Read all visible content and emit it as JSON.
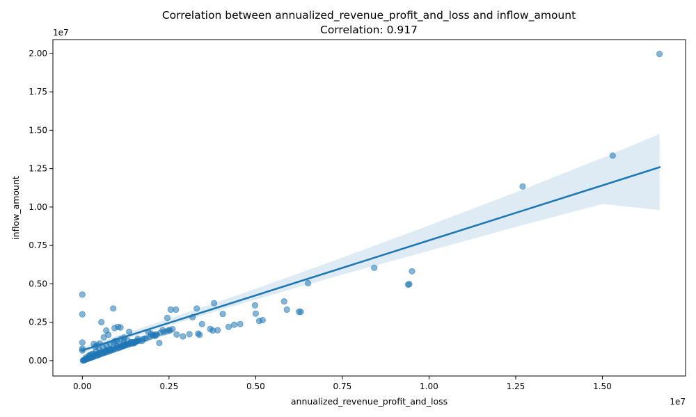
{
  "chart_data": {
    "type": "scatter",
    "title": "Correlation between annualized_revenue_profit_and_loss and inflow_amount",
    "subtitle": "Correlation: 0.917",
    "xlabel": "annualized_revenue_profit_and_loss",
    "ylabel": "inflow_amount",
    "x_offset_text": "1e7",
    "y_offset_text": "1e7",
    "xlim": [
      -0.085,
      1.74
    ],
    "ylim": [
      -0.1,
      2.09
    ],
    "x_ticks": [
      0.0,
      0.25,
      0.5,
      0.75,
      1.0,
      1.25,
      1.5
    ],
    "x_tick_labels": [
      "0.00",
      "0.25",
      "0.50",
      "0.75",
      "1.00",
      "1.25",
      "1.50"
    ],
    "y_ticks": [
      0.0,
      0.25,
      0.5,
      0.75,
      1.0,
      1.25,
      1.5,
      1.75,
      2.0
    ],
    "y_tick_labels": [
      "0.00",
      "0.25",
      "0.50",
      "0.75",
      "1.00",
      "1.25",
      "1.50",
      "1.75",
      "2.00"
    ],
    "grid": false,
    "legend": "none",
    "colors": {
      "points": "#1f77b4",
      "line": "#1f77b4",
      "band": "#1f77b4"
    },
    "regression": {
      "x": [
        0.0,
        1.665
      ],
      "y": [
        0.067,
        1.259
      ]
    },
    "confidence_band": {
      "x": [
        0.0,
        0.25,
        0.5,
        0.75,
        1.0,
        1.25,
        1.5,
        1.665
      ],
      "upper": [
        0.085,
        0.273,
        0.468,
        0.67,
        0.88,
        1.095,
        1.32,
        1.475
      ],
      "lower": [
        0.049,
        0.229,
        0.398,
        0.56,
        0.715,
        0.87,
        1.02,
        0.98
      ]
    },
    "points": {
      "x": [
        1.665,
        1.53,
        1.27,
        0.951,
        0.842,
        0.943,
        0.94,
        0.651,
        0.59,
        0.582,
        0.63,
        0.625,
        0.498,
        0.5,
        0.51,
        0.52,
        0.455,
        0.438,
        0.422,
        0.405,
        0.38,
        0.376,
        0.369,
        0.39,
        0.33,
        0.318,
        0.345,
        0.338,
        0.334,
        0.309,
        0.29,
        0.27,
        0.255,
        0.245,
        0.272,
        0.252,
        0.232,
        0.222,
        0.212,
        0.202,
        0.198,
        0.21,
        0.19,
        0.18,
        0.172,
        0.16,
        0.147,
        0.135,
        0.13,
        0.12,
        0.11,
        0.103,
        0.093,
        0.089,
        0.095,
        0.075,
        0.069,
        0.062,
        0.055,
        0.05,
        0.042,
        0.037,
        0.033,
        0.0,
        0.0,
        0.0,
        0.0,
        0.0,
        0.025,
        0.05,
        0.075,
        0.1,
        0.125,
        0.15,
        0.16,
        0.14,
        0.12,
        0.1,
        0.08,
        0.06,
        0.04,
        0.02,
        0.01,
        0.015,
        0.02,
        0.03,
        0.035,
        0.045,
        0.055,
        0.065,
        0.07,
        0.085,
        0.09,
        0.11,
        0.115,
        0.125,
        0.14,
        0.145,
        0.155,
        0.165,
        0.175,
        0.185,
        0.195,
        0.205,
        0.215,
        0.225,
        0.235,
        0.243,
        0.25,
        0.26,
        0.005,
        0.008,
        0.012,
        0.018,
        0.022,
        0.028,
        0.032,
        0.038,
        0.044,
        0.048,
        0.052,
        0.058,
        0.062,
        0.068,
        0.072,
        0.078,
        0.082,
        0.088,
        0.092,
        0.098,
        0.105,
        0.108,
        0.113,
        0.118,
        0.123,
        0.128,
        0.133,
        0.138,
        0.142,
        0.148,
        0.152,
        0.158,
        0.01,
        0.02,
        0.03,
        0.04,
        0.05,
        0.06,
        0.07,
        0.08,
        0.09,
        0.1,
        0.11,
        0.12,
        0.002,
        0.003,
        0.006,
        0.009,
        0.011,
        0.014,
        0.016,
        0.019,
        0.021,
        0.024,
        0.026,
        0.029
      ],
      "y": [
        1.997,
        1.335,
        1.134,
        0.582,
        0.605,
        0.498,
        0.495,
        0.504,
        0.332,
        0.386,
        0.318,
        0.318,
        0.36,
        0.306,
        0.258,
        0.264,
        0.238,
        0.234,
        0.22,
        0.304,
        0.374,
        0.196,
        0.206,
        0.198,
        0.34,
        0.283,
        0.238,
        0.168,
        0.176,
        0.172,
        0.158,
        0.332,
        0.332,
        0.278,
        0.17,
        0.195,
        0.198,
        0.115,
        0.17,
        0.164,
        0.176,
        0.16,
        0.186,
        0.144,
        0.128,
        0.142,
        0.112,
        0.188,
        0.132,
        0.125,
        0.216,
        0.22,
        0.212,
        0.34,
        0.128,
        0.168,
        0.196,
        0.152,
        0.25,
        0.112,
        0.1,
        0.09,
        0.108,
        0.43,
        0.302,
        0.118,
        0.078,
        0.066,
        0.04,
        0.05,
        0.07,
        0.09,
        0.105,
        0.115,
        0.13,
        0.12,
        0.105,
        0.095,
        0.075,
        0.055,
        0.04,
        0.02,
        0.01,
        0.015,
        0.03,
        0.025,
        0.04,
        0.045,
        0.055,
        0.06,
        0.07,
        0.07,
        0.085,
        0.1,
        0.095,
        0.105,
        0.115,
        0.12,
        0.125,
        0.13,
        0.14,
        0.145,
        0.155,
        0.165,
        0.17,
        0.18,
        0.185,
        0.19,
        0.2,
        0.205,
        0.003,
        0.006,
        0.01,
        0.014,
        0.018,
        0.022,
        0.026,
        0.03,
        0.034,
        0.038,
        0.042,
        0.046,
        0.05,
        0.054,
        0.058,
        0.062,
        0.066,
        0.07,
        0.074,
        0.078,
        0.082,
        0.086,
        0.09,
        0.094,
        0.098,
        0.102,
        0.106,
        0.11,
        0.114,
        0.118,
        0.122,
        0.126,
        0.02,
        0.035,
        0.045,
        0.06,
        0.07,
        0.085,
        0.095,
        0.11,
        0.12,
        0.13,
        0.14,
        0.15,
        0.001,
        0.002,
        0.004,
        0.007,
        0.009,
        0.011,
        0.013,
        0.016,
        0.018,
        0.02,
        0.022,
        0.024
      ]
    }
  }
}
